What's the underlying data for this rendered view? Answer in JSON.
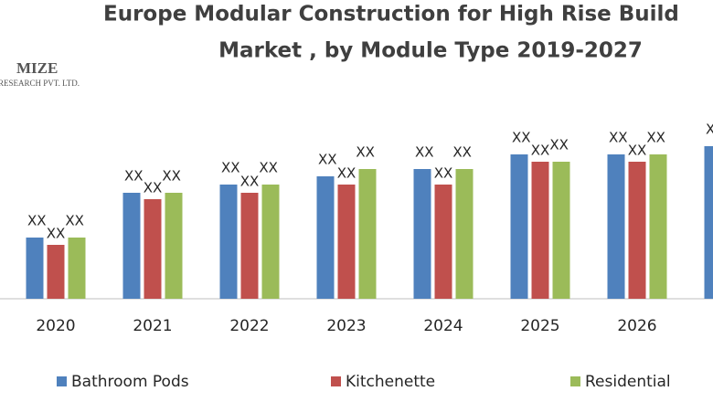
{
  "chart_data": {
    "type": "bar",
    "title": [
      "Europe Modular Construction for High Rise Build",
      "Market , by Module Type 2019-2027"
    ],
    "watermark": [
      "MIZE",
      "RESEARCH PVT. LTD."
    ],
    "categories": [
      "2020",
      "2021",
      "2022",
      "2023",
      "2024",
      "2025",
      "2026",
      null
    ],
    "series": [
      {
        "name": "Bathroom Pods",
        "color": "#4f81bd",
        "values": [
          67,
          116,
          125,
          134,
          142,
          158,
          158,
          167
        ],
        "value_labels": [
          "XX",
          "XX",
          "XX",
          "XX",
          "XX",
          "XX",
          "XX",
          "XX"
        ]
      },
      {
        "name": "Kitchenette",
        "color": "#c0504d",
        "values": [
          59,
          109,
          116,
          125,
          125,
          150,
          150,
          null
        ],
        "value_labels": [
          "XX",
          "XX",
          "XX",
          "XX",
          "XX",
          "XX",
          "XX",
          null
        ]
      },
      {
        "name": "Residential",
        "color": "#9bbb59",
        "values": [
          67,
          116,
          125,
          142,
          142,
          150,
          158,
          null
        ],
        "value_labels": [
          "XX",
          "XX",
          "XX",
          "XX",
          "XX",
          "XX",
          "XX",
          null
        ]
      }
    ],
    "ylim": [
      0,
      200
    ]
  }
}
